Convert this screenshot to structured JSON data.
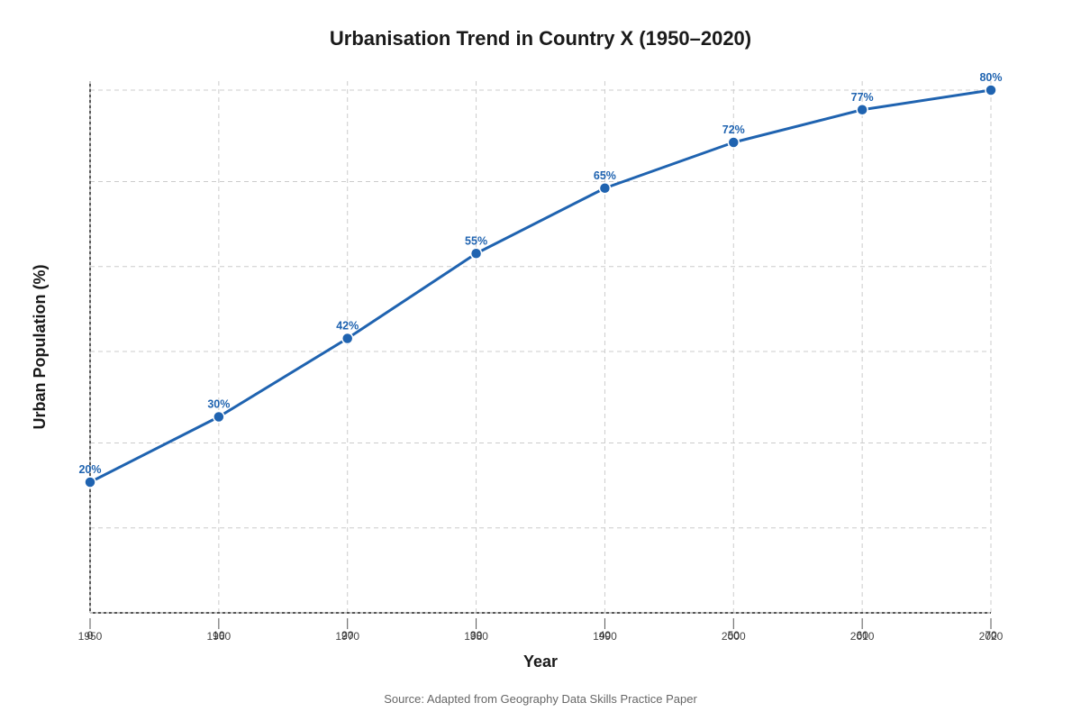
{
  "chart_data": {
    "type": "line",
    "title": "Urbanisation Trend in Country X (1950–2020)",
    "xlabel": "Year",
    "ylabel": "Urban Population (%)",
    "x_tick_labels": [
      "1950",
      "1960",
      "1970",
      "1980",
      "1990",
      "2000",
      "2010",
      "2020"
    ],
    "x_tick_overlay_labels": [
      "0",
      "10",
      "20",
      "30",
      "40",
      "50",
      "60",
      "70"
    ],
    "x": [
      1950,
      1960,
      1970,
      1980,
      1990,
      2000,
      2010,
      2020
    ],
    "xlim": [
      1950,
      2020
    ],
    "ylim": [
      0,
      80
    ],
    "y_gridlines": [
      0,
      13,
      26,
      40,
      53,
      66,
      80
    ],
    "series": [
      {
        "values": [
          20,
          30,
          42,
          55,
          65,
          72,
          77,
          80
        ],
        "labels": [
          "20%",
          "30%",
          "42%",
          "55%",
          "65%",
          "72%",
          "77%",
          "80%"
        ],
        "color": "#1f63b0"
      }
    ],
    "grid": true,
    "legend": false,
    "source": "Source: Adapted from Geography Data Skills Practice Paper"
  }
}
